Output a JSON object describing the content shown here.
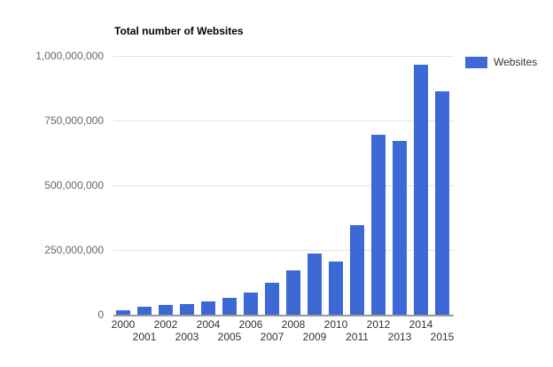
{
  "title": "Total number of Websites",
  "legend": {
    "label": "Websites"
  },
  "colors": {
    "background": "#FFFFFF",
    "bar": "#3C69D6",
    "grid": "#E2E2E2",
    "axis_line": "#999999",
    "y_tick_label": "#666666",
    "x_tick_label": "#333333",
    "title": "#000000",
    "legend_text": "#333333"
  },
  "chart_data": {
    "type": "bar",
    "title": "Total number of Websites",
    "categories": [
      "2000",
      "2001",
      "2002",
      "2003",
      "2004",
      "2005",
      "2006",
      "2007",
      "2008",
      "2009",
      "2010",
      "2011",
      "2012",
      "2013",
      "2014",
      "2015"
    ],
    "series": [
      {
        "name": "Websites",
        "values": [
          17000000,
          30000000,
          39000000,
          41000000,
          52000000,
          65000000,
          86000000,
          122000000,
          172000000,
          238000000,
          207000000,
          346000000,
          697000000,
          673000000,
          965000000,
          863000000
        ]
      }
    ],
    "xlabel": "",
    "ylabel": "",
    "ylim": [
      0,
      1000000000
    ],
    "yticks": [
      {
        "value": 0,
        "label": "0"
      },
      {
        "value": 250000000,
        "label": "250,000,000"
      },
      {
        "value": 500000000,
        "label": "500,000,000"
      },
      {
        "value": 750000000,
        "label": "750,000,000"
      },
      {
        "value": 1000000000,
        "label": "1,000,000,000"
      }
    ],
    "grid": true,
    "legend_position": "right"
  }
}
